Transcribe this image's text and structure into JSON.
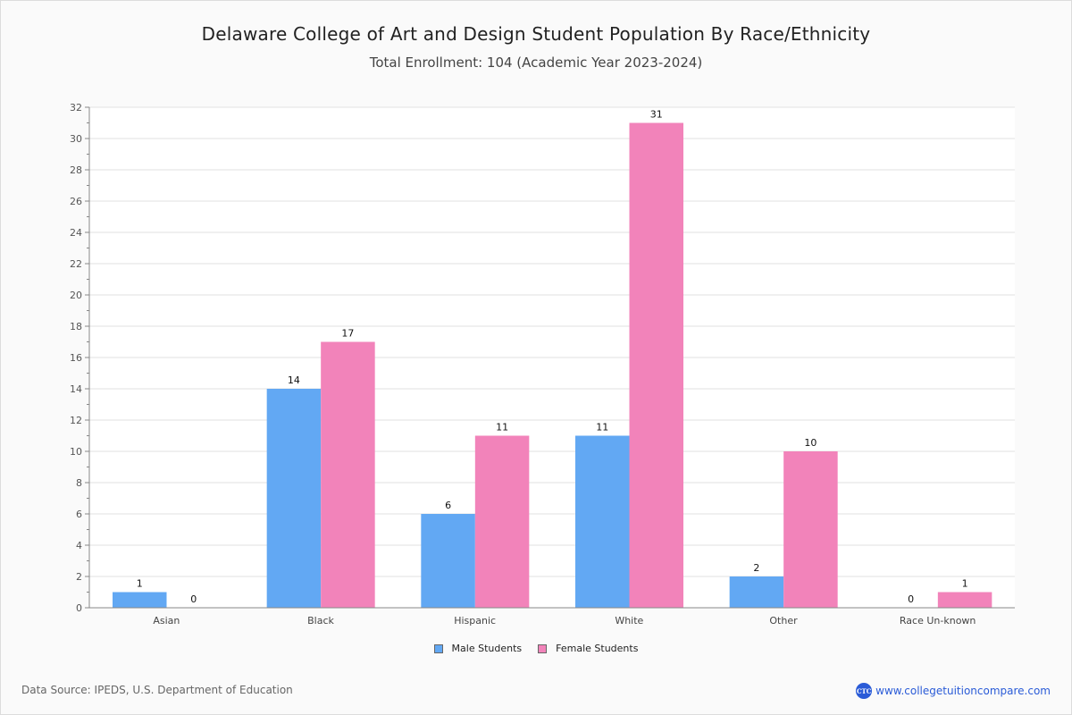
{
  "chart_data": {
    "type": "bar",
    "title": "Delaware College of Art and Design Student Population By Race/Ethnicity",
    "subtitle": "Total Enrollment: 104 (Academic Year 2023-2024)",
    "xlabel": "",
    "ylabel": "",
    "ylim": [
      0,
      32
    ],
    "yticks": [
      0,
      2,
      4,
      6,
      8,
      10,
      12,
      14,
      16,
      18,
      20,
      22,
      24,
      26,
      28,
      30,
      32
    ],
    "grid": true,
    "legend_position": "bottom-center",
    "categories": [
      "Asian",
      "Black",
      "Hispanic",
      "White",
      "Other",
      "Race Un-known"
    ],
    "series": [
      {
        "name": "Male Students",
        "color": "#62a8f3",
        "values": [
          1,
          14,
          6,
          11,
          2,
          0
        ]
      },
      {
        "name": "Female Students",
        "color": "#f283ba",
        "values": [
          0,
          17,
          11,
          31,
          10,
          1
        ]
      }
    ]
  },
  "footer": {
    "source": "Data Source: IPEDS, U.S. Department of Education",
    "brand_logo": "CTC",
    "brand_url": "www.collegetuitioncompare.com"
  }
}
